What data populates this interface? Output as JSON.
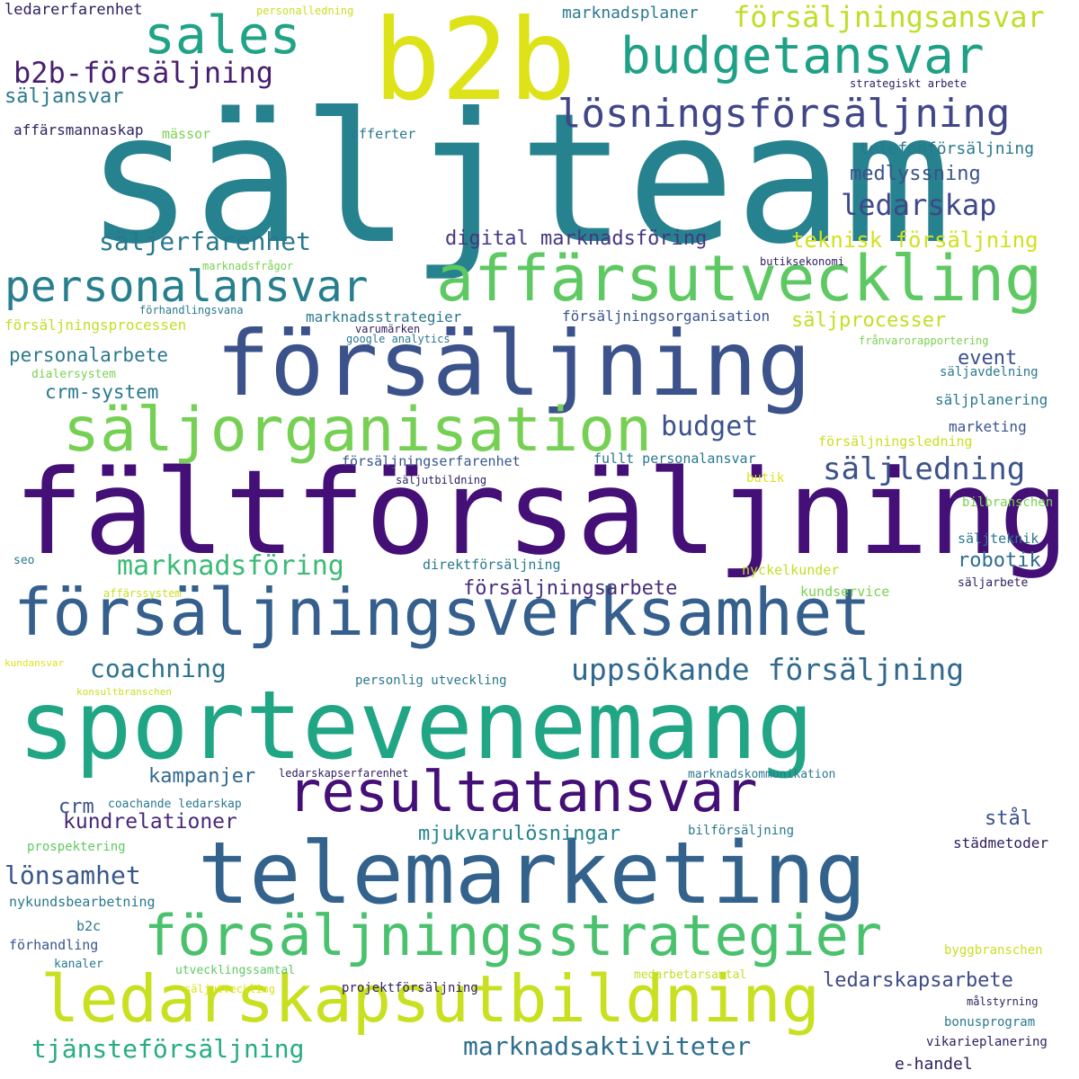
{
  "words": [
    {
      "text": "säljteam",
      "color": "#26828e"
    },
    {
      "text": "b2b",
      "color": "#dde318"
    },
    {
      "text": "fältförsäljning",
      "color": "#440f76"
    },
    {
      "text": "försäljning",
      "color": "#3b528b"
    },
    {
      "text": "sportevenemang",
      "color": "#21a685"
    },
    {
      "text": "telemarketing",
      "color": "#33638d"
    },
    {
      "text": "försäljningsverksamhet",
      "color": "#355f8d"
    },
    {
      "text": "affärsutveckling",
      "color": "#5ec962"
    },
    {
      "text": "säljorganisation",
      "color": "#75d054"
    },
    {
      "text": "resultatansvar",
      "color": "#440f76"
    },
    {
      "text": "ledarskapsutbildning",
      "color": "#c8e020"
    },
    {
      "text": "försäljningsstrategier",
      "color": "#4ac16d"
    },
    {
      "text": "budgetansvar",
      "color": "#1fa187"
    },
    {
      "text": "sales",
      "color": "#20a386"
    },
    {
      "text": "personalansvar",
      "color": "#277f8e"
    },
    {
      "text": "lösningsförsäljning",
      "color": "#404688"
    },
    {
      "text": "b2b-försäljning",
      "color": "#481f70"
    },
    {
      "text": "försäljningsansvar",
      "color": "#bddf26"
    },
    {
      "text": "ledarskap",
      "color": "#3f4889"
    },
    {
      "text": "säljerfarenhet",
      "color": "#2a788e"
    },
    {
      "text": "säljledning",
      "color": "#3b528b"
    },
    {
      "text": "budget",
      "color": "#3b528b"
    },
    {
      "text": "uppsökande försäljning",
      "color": "#31688e"
    },
    {
      "text": "marknadsföring",
      "color": "#3aba76"
    },
    {
      "text": "coachning",
      "color": "#2c728e"
    },
    {
      "text": "marknadsaktiviteter",
      "color": "#2e6f8e"
    },
    {
      "text": "tjänsteförsäljning",
      "color": "#27ad81"
    },
    {
      "text": "lönsamhet",
      "color": "#39568c"
    },
    {
      "text": "kundrelationer",
      "color": "#482878"
    },
    {
      "text": "ledarskapsarbete",
      "color": "#3e4a89"
    },
    {
      "text": "kampanjer",
      "color": "#31688e"
    },
    {
      "text": "mjukvarulösningar",
      "color": "#25848e"
    },
    {
      "text": "försäljningsarbete",
      "color": "#472d7b"
    },
    {
      "text": "robotik",
      "color": "#2f6c8e"
    },
    {
      "text": "digital marknadsföring",
      "color": "#453781"
    },
    {
      "text": "teknisk försäljning",
      "color": "#d0e11c"
    },
    {
      "text": "medlyssning",
      "color": "#3b528b"
    },
    {
      "text": "säljprocesser",
      "color": "#c2df23"
    },
    {
      "text": "personalarbete",
      "color": "#2a788e"
    },
    {
      "text": "crm-system",
      "color": "#2a788e"
    },
    {
      "text": "event",
      "color": "#3b518b"
    },
    {
      "text": "crm",
      "color": "#3b528b"
    },
    {
      "text": "stål",
      "color": "#3b528b"
    },
    {
      "text": "marknadsplaner",
      "color": "#2a788e"
    },
    {
      "text": "säljansvar",
      "color": "#2a788e"
    },
    {
      "text": "affärsmannaskap",
      "color": "#2d1e5e"
    },
    {
      "text": "mässor",
      "color": "#7ad151"
    },
    {
      "text": "offerter",
      "color": "#2a788e"
    },
    {
      "text": "telefonförsäljning",
      "color": "#2a788e"
    },
    {
      "text": "ledarerfarenhet",
      "color": "#2d1e5e"
    },
    {
      "text": "personalledning",
      "color": "#c8e020"
    },
    {
      "text": "strategiskt arbete",
      "color": "#2d1e5e"
    },
    {
      "text": "marknadsfrågor",
      "color": "#7ad151"
    },
    {
      "text": "butiksekonomi",
      "color": "#2d1e5e"
    },
    {
      "text": "förhandlingsvana",
      "color": "#2a788e"
    },
    {
      "text": "försäljningsprocessen",
      "color": "#c2df23"
    },
    {
      "text": "marknadsstrategier",
      "color": "#2a788e"
    },
    {
      "text": "försäljningsorganisation",
      "color": "#39568c"
    },
    {
      "text": "varumärken",
      "color": "#2d1e5e"
    },
    {
      "text": "google analytics",
      "color": "#2a788e"
    },
    {
      "text": "frånvarorapportering",
      "color": "#7ad151"
    },
    {
      "text": "dialersystem",
      "color": "#7ad151"
    },
    {
      "text": "säljavdelning",
      "color": "#2a788e"
    },
    {
      "text": "säljplanering",
      "color": "#2a788e"
    },
    {
      "text": "marketing",
      "color": "#39568c"
    },
    {
      "text": "försäljningsledning",
      "color": "#c8e020"
    },
    {
      "text": "försäljningserfarenhet",
      "color": "#39568c"
    },
    {
      "text": "fullt personalansvar",
      "color": "#2a788e"
    },
    {
      "text": "säljutbildning",
      "color": "#2d1e5e"
    },
    {
      "text": "butik",
      "color": "#dde318"
    },
    {
      "text": "bilbranschen",
      "color": "#7ad151"
    },
    {
      "text": "seo",
      "color": "#2a788e"
    },
    {
      "text": "direktförsäljning",
      "color": "#2a788e"
    },
    {
      "text": "säljteknik",
      "color": "#2a788e"
    },
    {
      "text": "nyckelkunder",
      "color": "#c2df23"
    },
    {
      "text": "affärssystem",
      "color": "#c8e020"
    },
    {
      "text": "kundservice",
      "color": "#7ad151"
    },
    {
      "text": "säljarbete",
      "color": "#2d1e5e"
    },
    {
      "text": "kundansvar",
      "color": "#dde318"
    },
    {
      "text": "personlig utveckling",
      "color": "#2a788e"
    },
    {
      "text": "konsultbranschen",
      "color": "#c8e020"
    },
    {
      "text": "ledarskapserfarenhet",
      "color": "#2d1e5e"
    },
    {
      "text": "marknadskommunikation",
      "color": "#2a788e"
    },
    {
      "text": "coachande ledarskap",
      "color": "#2a788e"
    },
    {
      "text": "bilförsäljning",
      "color": "#2a788e"
    },
    {
      "text": "prospektering",
      "color": "#5ec962"
    },
    {
      "text": "städmetoder",
      "color": "#2d1e5e"
    },
    {
      "text": "nykundsbearbetning",
      "color": "#2a788e"
    },
    {
      "text": "b2c",
      "color": "#2a788e"
    },
    {
      "text": "förhandling",
      "color": "#39568c"
    },
    {
      "text": "kanaler",
      "color": "#2a788e"
    },
    {
      "text": "utvecklingssamtal",
      "color": "#5ec962"
    },
    {
      "text": "medarbetarsamtal",
      "color": "#c2df23"
    },
    {
      "text": "byggbranschen",
      "color": "#c8e020"
    },
    {
      "text": "projektförsäljning",
      "color": "#2d1e5e"
    },
    {
      "text": "säljutveckling",
      "color": "#dde318"
    },
    {
      "text": "målstyrning",
      "color": "#2d1e5e"
    },
    {
      "text": "bonusprogram",
      "color": "#2a788e"
    },
    {
      "text": "vikarieplanering",
      "color": "#2d1e5e"
    },
    {
      "text": "e-handel",
      "color": "#2d1e5e"
    }
  ]
}
